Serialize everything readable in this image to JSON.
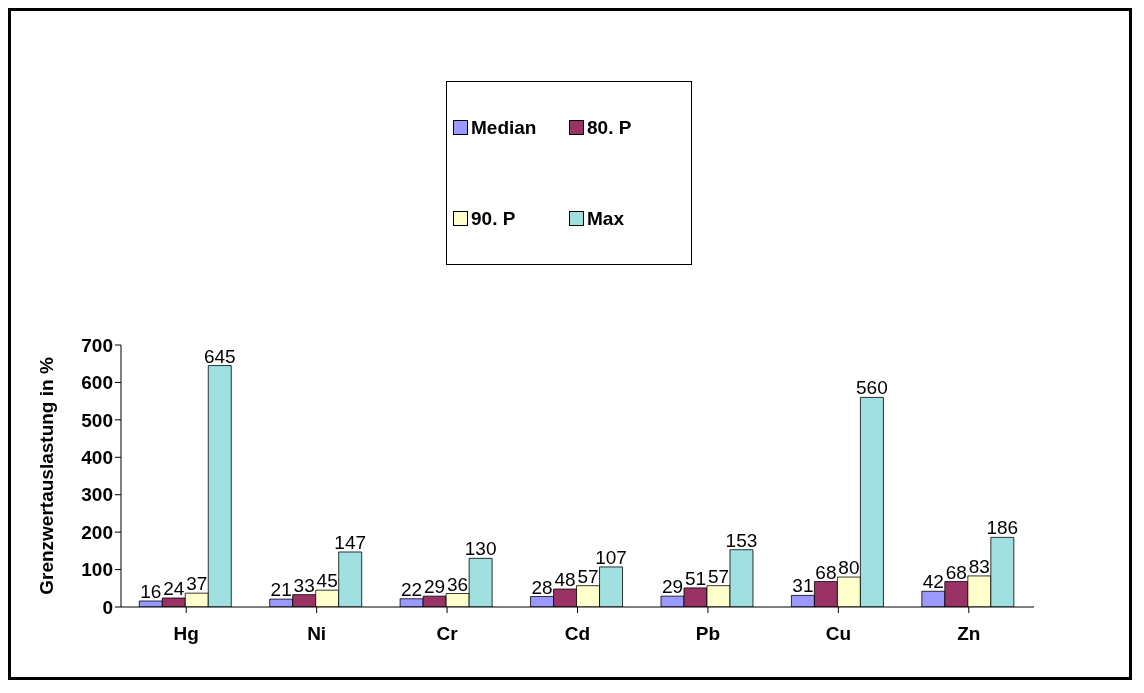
{
  "chart_data": {
    "type": "bar",
    "ylabel": "Grenzwertauslastung in %",
    "categories": [
      "Hg",
      "Ni",
      "Cr",
      "Cd",
      "Pb",
      "Cu",
      "Zn"
    ],
    "series": [
      {
        "name": "Median",
        "color": "#9999ff",
        "values": [
          16,
          21,
          22,
          28,
          29,
          31,
          42
        ]
      },
      {
        "name": "80. P",
        "color": "#993366",
        "values": [
          24,
          33,
          29,
          48,
          51,
          68,
          68
        ]
      },
      {
        "name": "90. P",
        "color": "#ffffcc",
        "values": [
          37,
          45,
          36,
          57,
          57,
          80,
          83
        ]
      },
      {
        "name": "Max",
        "color": "#a0e0e0",
        "values": [
          645,
          147,
          130,
          107,
          153,
          560,
          186
        ]
      }
    ],
    "ylim": [
      0,
      700
    ],
    "yticks": [
      0,
      100,
      200,
      300,
      400,
      500,
      600,
      700
    ],
    "grid": false,
    "legend": "top",
    "data_labels": true
  }
}
